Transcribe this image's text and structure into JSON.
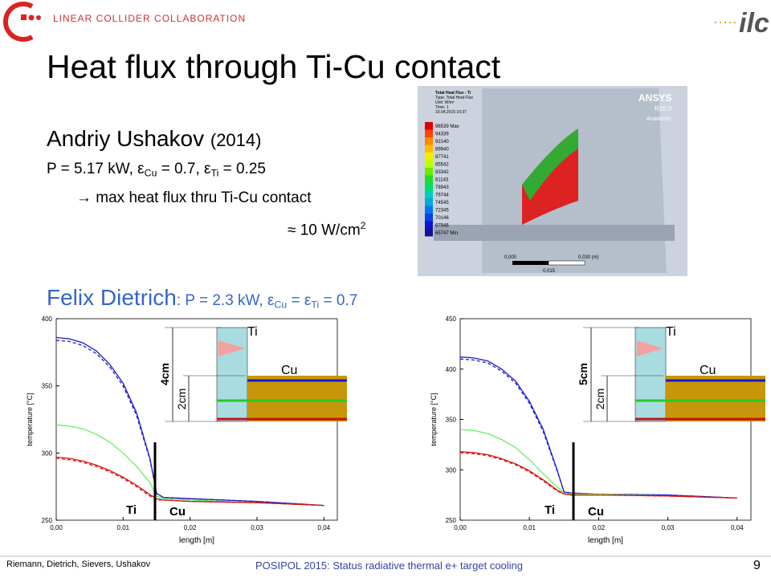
{
  "header": {
    "organization": "LINEAR COLLIDER COLLABORATION",
    "logo": "ilc"
  },
  "title": "Heat flux through Ti-Cu contact",
  "ushakov": {
    "name": "Andriy Ushakov",
    "year": "(2014)",
    "params": [
      "P = 5.17 kW,  ε",
      "Cu",
      " = 0.7, ε",
      "Ti",
      " = 0.25"
    ],
    "result": "→ max heat flux thru Ti-Cu contact",
    "value": [
      "≈ 10 W/cm",
      "2"
    ]
  },
  "ansys": {
    "brand": "ANSYS",
    "version": "R15.0",
    "edition": "Academic",
    "info": [
      "Total Heat Flux - Ti",
      "Type: Total Heat Flux",
      "Unit: W/m²",
      "Time: 1",
      "10.04.2015 16:37"
    ],
    "legend": [
      "96539 Max",
      "94339",
      "92140",
      "89940",
      "87741",
      "85542",
      "83342",
      "81143",
      "78943",
      "76744",
      "74545",
      "72345",
      "70146",
      "67946",
      "65747 Min"
    ],
    "scale": [
      "0,000",
      "0,030 (m)",
      "0,015"
    ]
  },
  "dietrich": {
    "name": "Felix Dietrich",
    "params": [
      ": P = 2.3 kW, ε",
      "Cu",
      " = ε",
      "Ti",
      " = 0.7"
    ]
  },
  "chart_data": [
    {
      "type": "line",
      "xlabel": "length [m]",
      "ylabel": "temperature [°C]",
      "x": [
        0,
        0.002,
        0.004,
        0.006,
        0.008,
        0.01,
        0.012,
        0.014,
        0.015,
        0.016,
        0.02,
        0.03,
        0.04
      ],
      "series": [
        {
          "color": "#1a1acc",
          "line_style": "solid",
          "values": [
            386,
            385,
            382,
            376,
            366,
            352,
            330,
            296,
            270,
            267,
            266,
            264,
            261
          ]
        },
        {
          "color": "#1a1acc",
          "line_style": "dashed",
          "values": [
            384,
            383,
            380,
            374,
            364,
            350,
            328,
            295,
            270,
            267,
            266,
            264,
            261
          ]
        },
        {
          "color": "#66ee66",
          "line_style": "solid",
          "values": [
            321,
            320,
            318,
            314,
            308,
            300,
            290,
            278,
            268,
            266,
            265,
            263,
            261
          ]
        },
        {
          "color": "#dd1111",
          "line_style": "solid",
          "values": [
            297,
            296,
            294,
            291,
            287,
            282,
            276,
            269,
            266,
            265,
            264,
            263,
            261
          ]
        },
        {
          "color": "#dd1111",
          "line_style": "dashed",
          "values": [
            296,
            295,
            293,
            290,
            286,
            281,
            275,
            268,
            265,
            265,
            264,
            263,
            261
          ]
        }
      ],
      "xlim": [
        0,
        0.042
      ],
      "ylim": [
        250,
        400
      ],
      "xticks": [
        {
          "value": 0,
          "label": "0,00"
        },
        {
          "value": 0.01,
          "label": "0,01"
        },
        {
          "value": 0.02,
          "label": "0,02"
        },
        {
          "value": 0.03,
          "label": "0,03"
        },
        {
          "value": 0.04,
          "label": "0,04"
        }
      ],
      "yticks": [
        250,
        300,
        350,
        400
      ],
      "annotations": [
        "Ti",
        "Cu"
      ],
      "inset": {
        "ti": "Ti",
        "cu": "Cu",
        "outer": "4cm",
        "inner": "2cm"
      }
    },
    {
      "type": "line",
      "xlabel": "length [m]",
      "ylabel": "temperature [°C]",
      "x": [
        0,
        0.002,
        0.004,
        0.006,
        0.008,
        0.01,
        0.012,
        0.014,
        0.015,
        0.016,
        0.02,
        0.03,
        0.04
      ],
      "series": [
        {
          "color": "#1a1acc",
          "line_style": "solid",
          "values": [
            412,
            411,
            408,
            400,
            388,
            368,
            340,
            300,
            278,
            277,
            276,
            275,
            272
          ]
        },
        {
          "color": "#1a1acc",
          "line_style": "dashed",
          "values": [
            410,
            409,
            406,
            398,
            386,
            366,
            338,
            299,
            278,
            277,
            276,
            275,
            272
          ]
        },
        {
          "color": "#66ee66",
          "line_style": "solid",
          "values": [
            340,
            339,
            336,
            330,
            322,
            310,
            296,
            283,
            277,
            276,
            276,
            274,
            272
          ]
        },
        {
          "color": "#dd1111",
          "line_style": "solid",
          "values": [
            318,
            317,
            315,
            311,
            306,
            299,
            290,
            280,
            276,
            275,
            275,
            274,
            272
          ]
        },
        {
          "color": "#dd1111",
          "line_style": "dashed",
          "values": [
            317,
            316,
            314,
            310,
            305,
            298,
            289,
            279,
            276,
            275,
            275,
            274,
            272
          ]
        }
      ],
      "xlim": [
        0,
        0.042
      ],
      "ylim": [
        250,
        450
      ],
      "xticks": [
        {
          "value": 0,
          "label": "0,00"
        },
        {
          "value": 0.01,
          "label": "0,01"
        },
        {
          "value": 0.02,
          "label": "0,02"
        },
        {
          "value": 0.03,
          "label": "0,03"
        },
        {
          "value": 0.04,
          "label": "0,04"
        }
      ],
      "yticks": [
        250,
        300,
        350,
        400,
        450
      ],
      "annotations": [
        "Ti",
        "Cu"
      ],
      "inset": {
        "ti": "Ti",
        "cu": "Cu",
        "outer": "5cm",
        "inner": "2cm"
      }
    }
  ],
  "footer": {
    "authors": "Riemann, Dietrich, Sievers, Ushakov",
    "event": "POSIPOL 2015:  Status radiative thermal e+ target cooling",
    "page": "9"
  }
}
